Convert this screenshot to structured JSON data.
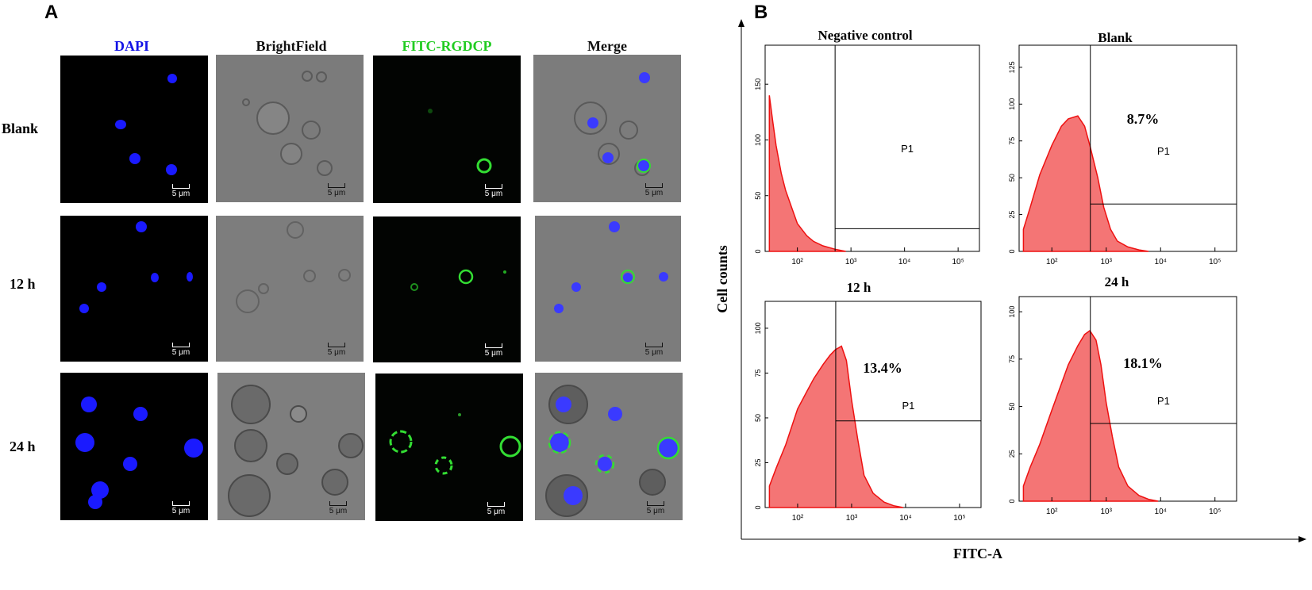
{
  "panel_a": {
    "letter": "A",
    "columns": [
      "DAPI",
      "BrightField",
      "FITC-RGDCP",
      "Merge"
    ],
    "column_colors": [
      "#1414e6",
      "#111111",
      "#22cc22",
      "#111111"
    ],
    "rows": [
      "Blank",
      "12 h",
      "24 h"
    ],
    "scale_bar": "5 μm"
  },
  "panel_b": {
    "letter": "B",
    "y_axis_label": "Cell counts",
    "x_axis_label": "FITC-A",
    "gate_label": "P1",
    "fill_color": "#f47575",
    "line_color": "#ee1111"
  },
  "chart_data": [
    {
      "type": "area",
      "title": "Negative control",
      "x_scale": "log",
      "x_ticks": [
        "10²",
        "10³",
        "10⁴",
        "10⁵"
      ],
      "y_ticks": [
        "0",
        "50",
        "100",
        "150"
      ],
      "ylim": [
        0,
        185
      ],
      "gate_percent": "",
      "series": [
        {
          "x": [
            30,
            35,
            40,
            50,
            60,
            80,
            100,
            150,
            200,
            300,
            500,
            800
          ],
          "y": [
            140,
            115,
            95,
            70,
            55,
            38,
            25,
            14,
            9,
            5,
            2,
            0
          ]
        }
      ]
    },
    {
      "type": "area",
      "title": "Blank",
      "x_scale": "log",
      "x_ticks": [
        "10²",
        "10³",
        "10⁴",
        "10⁵"
      ],
      "y_ticks": [
        "0",
        "25",
        "50",
        "75",
        "100",
        "125"
      ],
      "ylim": [
        0,
        140
      ],
      "gate_percent": "8.7%",
      "series": [
        {
          "x": [
            30,
            40,
            60,
            100,
            150,
            200,
            300,
            400,
            500,
            700,
            900,
            1200,
            1600,
            2500,
            4000,
            6000
          ],
          "y": [
            15,
            30,
            52,
            72,
            85,
            90,
            92,
            85,
            72,
            50,
            30,
            15,
            7,
            3,
            1,
            0
          ]
        }
      ]
    },
    {
      "type": "area",
      "title": "12 h",
      "x_scale": "log",
      "x_ticks": [
        "10²",
        "10³",
        "10⁴",
        "10⁵"
      ],
      "y_ticks": [
        "0",
        "25",
        "50",
        "75",
        "100"
      ],
      "ylim": [
        0,
        115
      ],
      "gate_percent": "13.4%",
      "series": [
        {
          "x": [
            30,
            40,
            60,
            100,
            150,
            200,
            300,
            400,
            500,
            650,
            800,
            1000,
            1300,
            1700,
            2500,
            4000,
            6000,
            9000
          ],
          "y": [
            12,
            22,
            35,
            55,
            65,
            72,
            80,
            85,
            88,
            90,
            82,
            60,
            38,
            18,
            8,
            3,
            1,
            0
          ]
        }
      ]
    },
    {
      "type": "area",
      "title": "24 h",
      "x_scale": "log",
      "x_ticks": [
        "10²",
        "10³",
        "10⁴",
        "10⁵"
      ],
      "y_ticks": [
        "0",
        "25",
        "50",
        "75",
        "100"
      ],
      "ylim": [
        0,
        108
      ],
      "gate_percent": "18.1%",
      "series": [
        {
          "x": [
            30,
            40,
            60,
            100,
            150,
            200,
            300,
            400,
            500,
            650,
            800,
            1000,
            1300,
            1700,
            2500,
            4000,
            6000,
            9000
          ],
          "y": [
            8,
            18,
            30,
            48,
            62,
            72,
            82,
            88,
            90,
            85,
            72,
            52,
            34,
            18,
            8,
            3,
            1,
            0
          ]
        }
      ]
    }
  ]
}
